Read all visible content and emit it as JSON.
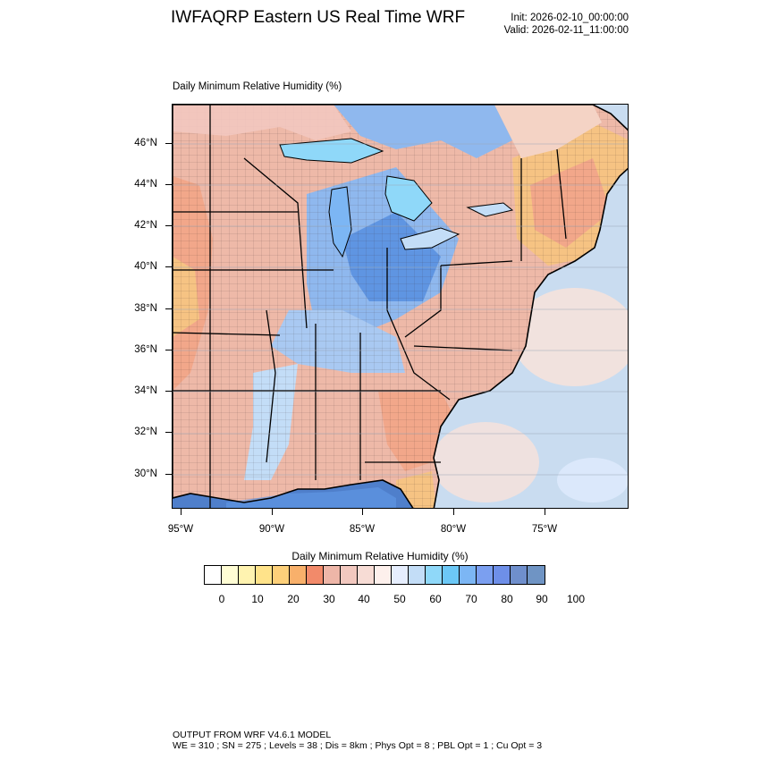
{
  "header": {
    "title": "IWFAQRP Eastern US Real Time WRF",
    "init": "Init: 2026-02-10_00:00:00",
    "valid": "Valid: 2026-02-11_11:00:00"
  },
  "map": {
    "title": "Daily Minimum Relative Humidity   (%)",
    "lat_labels": [
      "46°N",
      "44°N",
      "42°N",
      "40°N",
      "38°N",
      "36°N",
      "34°N",
      "32°N",
      "30°N"
    ],
    "lon_labels": [
      "95°W",
      "90°W",
      "85°W",
      "80°W",
      "75°W"
    ],
    "colors": {
      "ocean": "#c9dcf0",
      "dry_orange": "#f6c383",
      "dry_salmon": "#f2a78a",
      "mid_pink": "#f4d3c5",
      "moist_blue": "#8fb8ee",
      "wet_blue": "#5f95e2",
      "gulf_blue": "#3a6fc4"
    }
  },
  "colorbar": {
    "title": "Daily Minimum Relative Humidity  (%)",
    "colors": [
      "#ffffff",
      "#fffdd4",
      "#fff3b0",
      "#ffe38a",
      "#fdd07a",
      "#f8b06b",
      "#f28a6a",
      "#eeb6a8",
      "#f2c8bf",
      "#f7dcd5",
      "#fdf0ec",
      "#e6eefe",
      "#c3ddf7",
      "#8fd8f9",
      "#6cc8f6",
      "#7cb6f4",
      "#7b9ff0",
      "#6e8fe8",
      "#6f8fcc",
      "#6f94c4"
    ],
    "labels": [
      "0",
      "10",
      "20",
      "30",
      "40",
      "50",
      "60",
      "70",
      "80",
      "90",
      "100"
    ]
  },
  "footer": {
    "line1": "OUTPUT FROM WRF V4.6.1 MODEL",
    "line2": "WE = 310 ; SN = 275 ; Levels = 38 ; Dis = 8km ; Phys Opt = 8 ; PBL Opt = 1 ; Cu Opt = 3"
  }
}
